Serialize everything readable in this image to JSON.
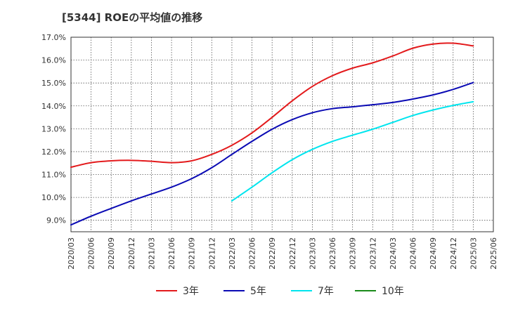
{
  "chart_data": {
    "type": "line",
    "title": "[5344]  ROEの平均値の推移",
    "xlabel": "",
    "ylabel": "",
    "ylim": [
      8.5,
      17.0
    ],
    "yticks": [
      9.0,
      10.0,
      11.0,
      12.0,
      13.0,
      14.0,
      15.0,
      16.0,
      17.0
    ],
    "ytick_labels": [
      "9.0%",
      "10.0%",
      "11.0%",
      "12.0%",
      "13.0%",
      "14.0%",
      "15.0%",
      "16.0%",
      "17.0%"
    ],
    "categories": [
      "2020/03",
      "2020/06",
      "2020/09",
      "2020/12",
      "2021/03",
      "2021/06",
      "2021/09",
      "2021/12",
      "2022/03",
      "2022/06",
      "2022/09",
      "2022/12",
      "2023/03",
      "2023/06",
      "2023/09",
      "2023/12",
      "2024/03",
      "2024/06",
      "2024/09",
      "2024/12",
      "2025/03",
      "2025/06"
    ],
    "grid": true,
    "legend_position": "bottom",
    "series": [
      {
        "name": "3年",
        "color": "#e31a1c",
        "values": [
          11.32,
          11.52,
          11.6,
          11.62,
          11.58,
          11.52,
          11.6,
          11.88,
          12.28,
          12.82,
          13.5,
          14.22,
          14.85,
          15.32,
          15.65,
          15.88,
          16.18,
          16.52,
          16.7,
          16.74,
          16.62,
          null
        ]
      },
      {
        "name": "5年",
        "color": "#0a0ab4",
        "values": [
          8.8,
          9.18,
          9.52,
          9.85,
          10.15,
          10.45,
          10.82,
          11.3,
          11.88,
          12.45,
          12.98,
          13.4,
          13.7,
          13.88,
          13.96,
          14.05,
          14.15,
          14.3,
          14.48,
          14.72,
          15.02,
          null
        ]
      },
      {
        "name": "7年",
        "color": "#00e5ee",
        "values": [
          null,
          null,
          null,
          null,
          null,
          null,
          null,
          null,
          9.85,
          10.45,
          11.08,
          11.65,
          12.1,
          12.45,
          12.72,
          12.98,
          13.28,
          13.58,
          13.82,
          14.02,
          14.18,
          null
        ]
      },
      {
        "name": "10年",
        "color": "#1a8a1a",
        "values": [
          null,
          null,
          null,
          null,
          null,
          null,
          null,
          null,
          null,
          null,
          null,
          null,
          null,
          null,
          null,
          null,
          null,
          null,
          null,
          null,
          null,
          null
        ]
      }
    ]
  }
}
